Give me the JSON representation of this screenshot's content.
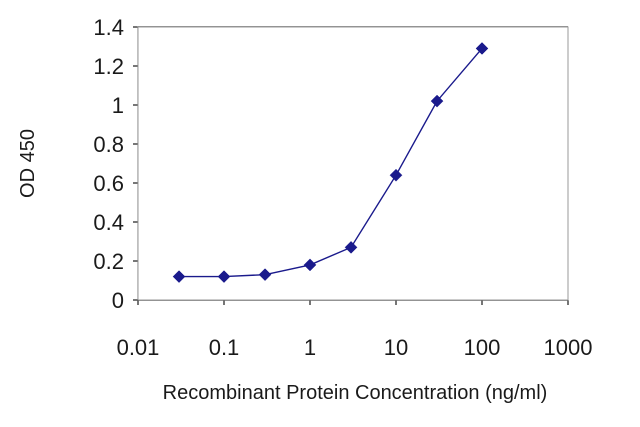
{
  "chart_data": {
    "type": "scatter",
    "title": "",
    "xlabel": "Recombinant Protein Concentration (ng/ml)",
    "ylabel": "OD 450",
    "x_scale": "log",
    "xlim": [
      0.01,
      1000
    ],
    "ylim": [
      0,
      1.4
    ],
    "grid": "horizontal",
    "x_ticks": [
      0.01,
      0.1,
      1,
      10,
      100,
      1000
    ],
    "x_tick_labels": [
      "0.01",
      "0.1",
      "1",
      "10",
      "100",
      "1000"
    ],
    "y_ticks": [
      0,
      0.2,
      0.4,
      0.6,
      0.8,
      1,
      1.2,
      1.4
    ],
    "y_tick_labels": [
      "0",
      "0.2",
      "0.4",
      "0.6",
      "0.8",
      "1",
      "1.2",
      "1.4"
    ],
    "series": [
      {
        "x": [
          0.03,
          0.1,
          0.3,
          1,
          3,
          10,
          30,
          100
        ],
        "y": [
          0.12,
          0.12,
          0.13,
          0.18,
          0.27,
          0.64,
          1.02,
          1.29
        ]
      }
    ],
    "colors": {
      "series": "#1a1a8c",
      "grid": "#1a1a1a",
      "plot_bg": "#ffffff"
    }
  }
}
